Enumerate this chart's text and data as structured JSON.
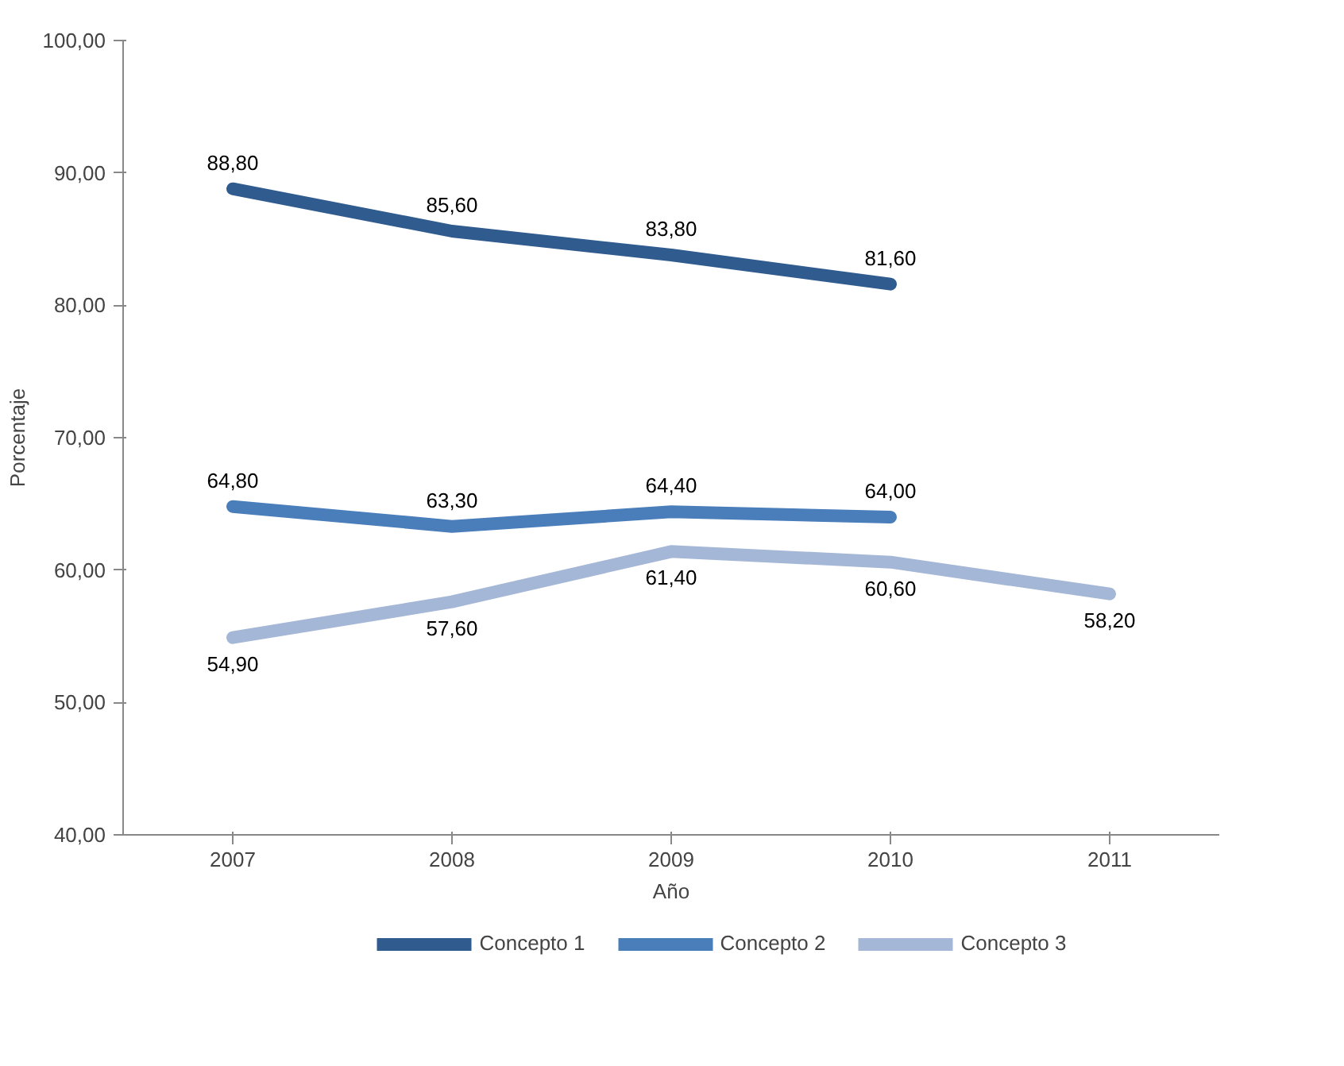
{
  "chart_data": {
    "type": "line",
    "xlabel": "Año",
    "ylabel": "Porcentaje",
    "categories": [
      "2007",
      "2008",
      "2009",
      "2010",
      "2011"
    ],
    "series": [
      {
        "name": "Concepto 1",
        "color": "#2f5b8f",
        "values": [
          88.8,
          85.6,
          83.8,
          81.6,
          null
        ],
        "value_labels": [
          "88,80",
          "85,60",
          "83,80",
          "81,60",
          null
        ]
      },
      {
        "name": "Concepto 2",
        "color": "#4a7ebb",
        "values": [
          64.8,
          63.3,
          64.4,
          64.0,
          null
        ],
        "value_labels": [
          "64,80",
          "63,30",
          "64,40",
          "64,00",
          null
        ]
      },
      {
        "name": "Concepto 3",
        "color": "#a5b7d6",
        "values": [
          54.9,
          57.6,
          61.4,
          60.6,
          58.2
        ],
        "value_labels": [
          "54,90",
          "57,60",
          "61,40",
          "60,60",
          "58,20"
        ]
      }
    ],
    "ylim": [
      40,
      100
    ],
    "yticks": [
      {
        "value": 40,
        "label": "40,00"
      },
      {
        "value": 50,
        "label": "50,00"
      },
      {
        "value": 60,
        "label": "60,00"
      },
      {
        "value": 70,
        "label": "70,00"
      },
      {
        "value": 80,
        "label": "80,00"
      },
      {
        "value": 90,
        "label": "90,00"
      },
      {
        "value": 100,
        "label": "100,00"
      }
    ],
    "grid": false,
    "legend": "bottom",
    "marker": "none",
    "line_style": "solid"
  }
}
